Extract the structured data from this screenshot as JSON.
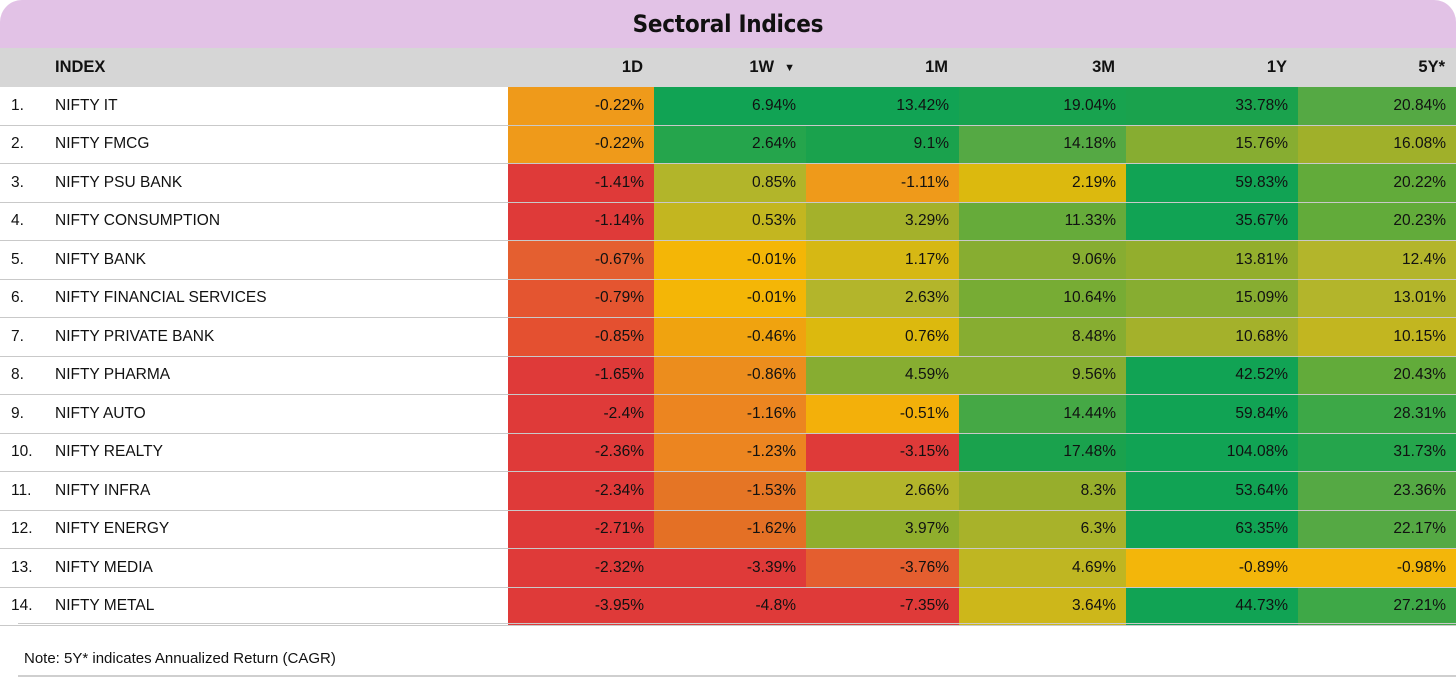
{
  "title": "Sectoral Indices",
  "columns": {
    "index": "INDEX",
    "d1": "1D",
    "w1": "1W",
    "w1_sort_icon": "triangle-down-icon",
    "m1": "1M",
    "m3": "3M",
    "y1": "1Y",
    "y5": "5Y*"
  },
  "note": "Note: 5Y* indicates Annualized Return (CAGR)",
  "color_scale": {
    "deep_red": "#df3a39",
    "red_orange": "#e45f30",
    "orange": "#ef9a1a",
    "yellow": "#f3b60a",
    "olive": "#b3b52b",
    "light_green": "#87ad31",
    "green": "#55a944",
    "deep_green": "#11a354"
  },
  "chart_data": {
    "type": "table",
    "title": "Sectoral Indices",
    "columns": [
      "INDEX",
      "1D",
      "1W",
      "1M",
      "3M",
      "1Y",
      "5Y*"
    ],
    "sorted_by": "1W",
    "sort_direction": "descending",
    "rows": [
      {
        "rank": "1.",
        "name": "NIFTY IT",
        "values": [
          "-0.22%",
          "6.94%",
          "13.42%",
          "19.04%",
          "33.78%",
          "20.84%"
        ],
        "colors": [
          "#ef9a1a",
          "#11a354",
          "#11a354",
          "#18a34f",
          "#1aa24d",
          "#55a944"
        ]
      },
      {
        "rank": "2.",
        "name": "NIFTY FMCG",
        "values": [
          "-0.22%",
          "2.64%",
          "9.1%",
          "14.18%",
          "15.76%",
          "16.08%"
        ],
        "colors": [
          "#ef9a1a",
          "#25a54c",
          "#1aa24d",
          "#55a944",
          "#87ad31",
          "#a0b02a"
        ]
      },
      {
        "rank": "3.",
        "name": "NIFTY PSU BANK",
        "values": [
          "-1.41%",
          "0.85%",
          "-1.11%",
          "2.19%",
          "59.83%",
          "20.22%"
        ],
        "colors": [
          "#df3a39",
          "#b2b52a",
          "#ef9a1a",
          "#dcb90e",
          "#11a354",
          "#62ab3a"
        ]
      },
      {
        "rank": "4.",
        "name": "NIFTY CONSUMPTION",
        "values": [
          "-1.14%",
          "0.53%",
          "3.29%",
          "11.33%",
          "35.67%",
          "20.23%"
        ],
        "colors": [
          "#df3a39",
          "#c3b620",
          "#a4b12b",
          "#66ab3a",
          "#11a354",
          "#62ab3a"
        ]
      },
      {
        "rank": "5.",
        "name": "NIFTY BANK",
        "values": [
          "-0.67%",
          "-0.01%",
          "1.17%",
          "9.06%",
          "13.81%",
          "12.4%"
        ],
        "colors": [
          "#e45f30",
          "#f4b606",
          "#d6b814",
          "#87ad31",
          "#93ae2d",
          "#b3b52b"
        ]
      },
      {
        "rank": "6.",
        "name": "NIFTY FINANCIAL SERVICES",
        "values": [
          "-0.79%",
          "-0.01%",
          "2.63%",
          "10.64%",
          "15.09%",
          "13.01%"
        ],
        "colors": [
          "#e45530",
          "#f4b606",
          "#b3b52b",
          "#77ac34",
          "#87ad31",
          "#b3b52b"
        ]
      },
      {
        "rank": "7.",
        "name": "NIFTY PRIVATE BANK",
        "values": [
          "-0.85%",
          "-0.46%",
          "0.76%",
          "8.48%",
          "10.68%",
          "10.15%"
        ],
        "colors": [
          "#e45030",
          "#f0a30f",
          "#dcb90e",
          "#87ad31",
          "#a4b12b",
          "#c2b620"
        ]
      },
      {
        "rank": "8.",
        "name": "NIFTY PHARMA",
        "values": [
          "-1.65%",
          "-0.86%",
          "4.59%",
          "9.56%",
          "42.52%",
          "20.43%"
        ],
        "colors": [
          "#df3a39",
          "#ec8d1d",
          "#87ad31",
          "#87ad31",
          "#11a354",
          "#62ab3a"
        ]
      },
      {
        "rank": "9.",
        "name": "NIFTY AUTO",
        "values": [
          "-2.4%",
          "-1.16%",
          "-0.51%",
          "14.44%",
          "59.84%",
          "28.31%"
        ],
        "colors": [
          "#df3a39",
          "#ec8520",
          "#f3b00a",
          "#45a845",
          "#11a354",
          "#3da847"
        ]
      },
      {
        "rank": "10.",
        "name": "NIFTY REALTY",
        "values": [
          "-2.36%",
          "-1.23%",
          "-3.15%",
          "17.48%",
          "104.08%",
          "31.73%"
        ],
        "colors": [
          "#df3a39",
          "#ec8520",
          "#df3a39",
          "#1aa24d",
          "#11a354",
          "#25a54c"
        ]
      },
      {
        "rank": "11.",
        "name": "NIFTY INFRA",
        "values": [
          "-2.34%",
          "-1.53%",
          "2.66%",
          "8.3%",
          "53.64%",
          "23.36%"
        ],
        "colors": [
          "#df3a39",
          "#e57525",
          "#b3b52b",
          "#97ae2c",
          "#11a354",
          "#55a944"
        ]
      },
      {
        "rank": "12.",
        "name": "NIFTY ENERGY",
        "values": [
          "-2.71%",
          "-1.62%",
          "3.97%",
          "6.3%",
          "63.35%",
          "22.17%"
        ],
        "colors": [
          "#df3a39",
          "#e47025",
          "#90ae2d",
          "#a8b22a",
          "#11a354",
          "#55a944"
        ]
      },
      {
        "rank": "13.",
        "name": "NIFTY MEDIA",
        "values": [
          "-2.32%",
          "-3.39%",
          "-3.76%",
          "4.69%",
          "-0.89%",
          "-0.98%"
        ],
        "colors": [
          "#df3a39",
          "#df3a39",
          "#e45e2f",
          "#bfb622",
          "#f3b60a",
          "#f3b60a"
        ]
      },
      {
        "rank": "14.",
        "name": "NIFTY METAL",
        "values": [
          "-3.95%",
          "-4.8%",
          "-7.35%",
          "3.64%",
          "44.73%",
          "27.21%"
        ],
        "colors": [
          "#df3a39",
          "#df3a39",
          "#df3a39",
          "#cdb71a",
          "#11a354",
          "#3ea847"
        ]
      }
    ]
  }
}
